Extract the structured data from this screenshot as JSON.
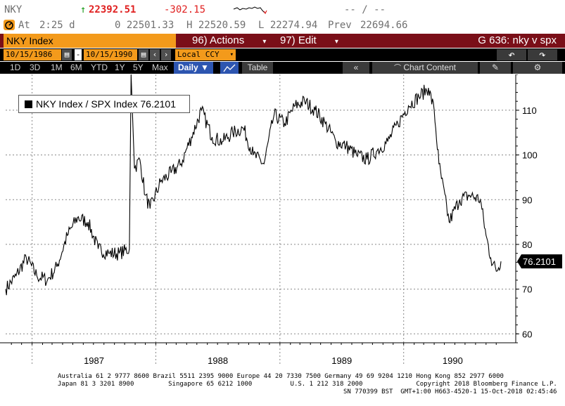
{
  "quote": {
    "ticker": "NKY",
    "arrow": "↑",
    "last": "22392.51",
    "change": "-302.15",
    "range_placeholder": "-- / --",
    "time_label": "At",
    "time": "2:25 d",
    "open": "0 22501.33",
    "high": "H 22520.59",
    "low": "L 22274.94",
    "prev_label": "Prev",
    "prev": "22694.66"
  },
  "header": {
    "security": "NKY Index",
    "actions": "96) Actions",
    "edit": "97) Edit",
    "chart_title": "G 636: nky v spx"
  },
  "settings": {
    "start_date": "10/15/1986",
    "end_date": "10/15/1990",
    "dash": "-",
    "currency": "Local CCY"
  },
  "periods": {
    "items": [
      "1D",
      "3D",
      "1M",
      "6M",
      "YTD",
      "1Y",
      "5Y",
      "Max"
    ],
    "frequency": "Daily ▼",
    "table": "Table",
    "chart_content": "Chart Content"
  },
  "chart_data": {
    "type": "line",
    "series": [
      {
        "name": "NKY Index / SPX Index 76.2101",
        "x": [
          "1986-10-15",
          "1986-11-15",
          "1986-12-15",
          "1987-01-15",
          "1987-02-15",
          "1987-03-15",
          "1987-04-15",
          "1987-05-15",
          "1987-06-15",
          "1987-07-15",
          "1987-08-15",
          "1987-09-15",
          "1987-10-15",
          "1987-10-20",
          "1987-10-30",
          "1987-11-15",
          "1987-12-01",
          "1987-12-15",
          "1988-01-15",
          "1988-02-15",
          "1988-03-15",
          "1988-04-15",
          "1988-05-15",
          "1988-06-15",
          "1988-07-15",
          "1988-08-15",
          "1988-09-15",
          "1988-10-15",
          "1988-11-15",
          "1988-12-15",
          "1989-01-15",
          "1989-02-15",
          "1989-03-15",
          "1989-04-15",
          "1989-05-15",
          "1989-06-15",
          "1989-07-15",
          "1989-08-15",
          "1989-09-15",
          "1989-10-15",
          "1989-11-15",
          "1989-12-15",
          "1990-01-15",
          "1990-02-15",
          "1990-03-15",
          "1990-04-01",
          "1990-04-15",
          "1990-05-15",
          "1990-06-15",
          "1990-07-15",
          "1990-08-15",
          "1990-09-01",
          "1990-09-15",
          "1990-10-01",
          "1990-10-15"
        ],
        "values": [
          70,
          73,
          77,
          73,
          72,
          75,
          82,
          86,
          85,
          79,
          78,
          78,
          79,
          118,
          97,
          99,
          91,
          88,
          94,
          96,
          98,
          104,
          110,
          104,
          103,
          105,
          106,
          100,
          98,
          109,
          107,
          111,
          112,
          110,
          107,
          103,
          102,
          100,
          99,
          101,
          103,
          107,
          111,
          113,
          115,
          110,
          98,
          85,
          90,
          91,
          90,
          82,
          77,
          74,
          76.21
        ]
      }
    ],
    "x_tick_labels": [
      "1987",
      "1988",
      "1989",
      "1990"
    ],
    "y_ticks": [
      60,
      70,
      80,
      90,
      100,
      110
    ],
    "ylim": [
      58,
      118
    ],
    "last_value_label": "76.2101",
    "legend_position": "top-left",
    "grid": true,
    "colors": {
      "line": "#000000",
      "grid": "#888888",
      "last_label_bg": "#000000"
    }
  },
  "footer": {
    "line1": "Australia 61 2 9777 8600 Brazil 5511 2395 9000 Europe 44 20 7330 7500 Germany 49 69 9204 1210 Hong Kong 852 2977 6000",
    "line2": "Japan 81 3 3201 8900         Singapore 65 6212 1000          U.S. 1 212 318 2000              Copyright 2018 Bloomberg Finance L.P.",
    "line3": "SN 770399 BST  GMT+1:00 H663-4520-1 15-Oct-2018 02:45:46"
  }
}
